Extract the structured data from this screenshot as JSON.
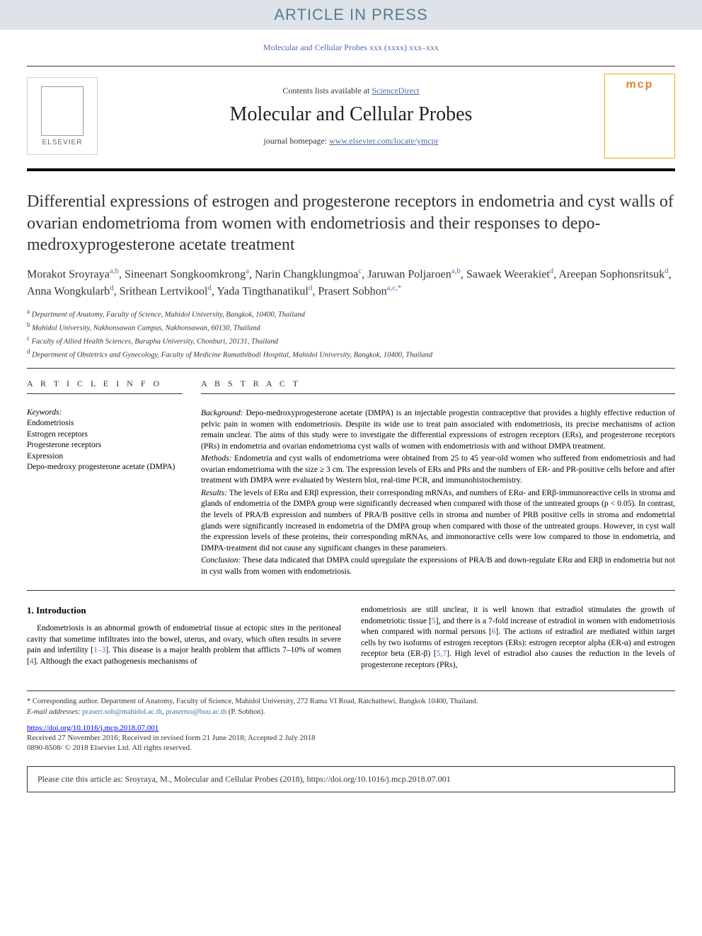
{
  "banner": {
    "label": "ARTICLE IN PRESS",
    "bg_color": "#dde3e8",
    "text_color": "#5a7a8f",
    "fontsize": 22
  },
  "journal_ref": "Molecular and Cellular Probes xxx (xxxx) xxx–xxx",
  "header": {
    "publisher_name": "ELSEVIER",
    "contents_line": "Contents lists available at ",
    "contents_link": "ScienceDirect",
    "journal_name": "Molecular and Cellular Probes",
    "homepage_label": "journal homepage: ",
    "homepage_url": "www.elsevier.com/locate/ymcpr",
    "cover_label": "mcp"
  },
  "article": {
    "title": "Differential expressions of estrogen and progesterone receptors in endometria and cyst walls of ovarian endometrioma from women with endometriosis and their responses to depo-medroxyprogesterone acetate treatment",
    "title_fontsize": 24,
    "title_color": "#333333"
  },
  "authors": [
    {
      "name": "Morakot Sroyraya",
      "aff": "a,b"
    },
    {
      "name": "Sineenart Songkoomkrong",
      "aff": "a"
    },
    {
      "name": "Narin Changklungmoa",
      "aff": "c"
    },
    {
      "name": "Jaruwan Poljaroen",
      "aff": "a,b"
    },
    {
      "name": "Sawaek Weerakiet",
      "aff": "d"
    },
    {
      "name": "Areepan Sophonsritsuk",
      "aff": "d"
    },
    {
      "name": "Anna Wongkularb",
      "aff": "d"
    },
    {
      "name": "Srithean Lertvikool",
      "aff": "d"
    },
    {
      "name": "Yada Tingthanatikul",
      "aff": "d"
    },
    {
      "name": "Prasert Sobhon",
      "aff": "a,c,*"
    }
  ],
  "affiliations": [
    {
      "sup": "a",
      "text": "Department of Anatomy, Faculty of Science, Mahidol University, Bangkok, 10400, Thailand"
    },
    {
      "sup": "b",
      "text": "Mahidol University, Nakhonsawan Campus, Nakhonsawan, 60130, Thailand"
    },
    {
      "sup": "c",
      "text": "Faculty of Allied Health Sciences, Burapha University, Chonburi, 20131, Thailand"
    },
    {
      "sup": "d",
      "text": "Department of Obstetrics and Gynecology, Faculty of Medicine Ramathibodi Hospital, Mahidol University, Bangkok, 10400, Thailand"
    }
  ],
  "article_info": {
    "section_label": "A R T I C L E  I N F O",
    "keywords_label": "Keywords:",
    "keywords": [
      "Endometriosis",
      "Estrogen receptors",
      "Progesterone receptors",
      "Expression",
      "Depo-medroxy progesterone acetate (DMPA)"
    ]
  },
  "abstract": {
    "section_label": "A B S T R A C T",
    "background_label": "Background:",
    "background": "Depo-medroxyprogesterone acetate (DMPA) is an injectable progestin contraceptive that provides a highly effective reduction of pelvic pain in women with endometriosis. Despite its wide use to treat pain associated with endometriosis, its precise mechanisms of action remain unclear. The aims of this study were to investigate the differential expressions of estrogen receptors (ERs), and progesterone receptors (PRs) in endometria and ovarian endometrioma cyst walls of women with endometriosis with and without DMPA treatment.",
    "methods_label": "Methods:",
    "methods": "Endometria and cyst walls of endometrioma were obtained from 25 to 45 year-old women who suffered from endometriosis and had ovarian endometrioma with the size ≥ 3 cm. The expression levels of ERs and PRs and the numbers of ER- and PR-positive cells before and after treatment with DMPA were evaluated by Western blot, real-time PCR, and immunohistochemistry.",
    "results_label": "Results:",
    "results": "The levels of ERα and ERβ expression, their corresponding mRNAs, and numbers of ERα- and ERβ-immunoreactive cells in stroma and glands of endometria of the DMPA group were significantly decreased when compared with those of the untreated groups (p < 0.05). In contrast, the levels of PRA/B expression and numbers of PRA/B positive cells in stroma and number of PRB positive cells in stroma and endometrial glands were significantly increased in endometria of the DMPA group when compared with those of the untreated groups. However, in cyst wall the expression levels of these proteins, their corresponding mRNAs, and immonoractive cells were low compared to those in endometria, and DMPA-treatment did not cause any significant changes in these parameters.",
    "conclusion_label": "Conclusion:",
    "conclusion": "These data indicated that DMPA could upregulate the expressions of PRA/B and down-regulate ERα and ERβ in endometria but not in cyst walls from women with endometriosis."
  },
  "intro": {
    "heading": "1. Introduction",
    "col1": "Endometriosis is an abnormal growth of endometrial tissue at ectopic sites in the peritoneal cavity that sometime infiltrates into the bowel, uterus, and ovary, which often results in severe pain and infertility [1–3]. This disease is a major health problem that afflicts 7–10% of women [4]. Although the exact pathogenesis mechanisms of",
    "col2": "endometriosis are still unclear, it is well known that estradiol stimulates the growth of endometriotic tissue [5], and there is a 7-fold increase of estradiol in women with endometriosis when compared with normal persons [6]. The actions of estradiol are mediated within target cells by two isoforms of estrogen receptors (ERs): estrogen receptor alpha (ER-α) and estrogen receptor beta (ER-β) [5,7]. High level of estradiol also causes the reduction in the levels of progesterone receptors (PRs),",
    "ref_links": [
      "1–3",
      "4",
      "5",
      "6",
      "5,7"
    ]
  },
  "footnotes": {
    "corresponding": "* Corresponding author. Department of Anatomy, Faculty of Science, Mahidol University, 272 Rama VI Road, Ratchathewi, Bangkok 10400, Thailand.",
    "email_label": "E-mail addresses:",
    "emails": [
      "prasert.sob@mahidol.ac.th",
      "prasertso@buu.ac.th"
    ],
    "email_suffix": "(P. Sobhon).",
    "doi": "https://doi.org/10.1016/j.mcp.2018.07.001",
    "received": "Received 27 November 2016; Received in revised form 21 June 2018; Accepted 2 July 2018",
    "copyright": "0890-8508/ © 2018 Elsevier Ltd. All rights reserved."
  },
  "citation_box": "Please cite this article as: Sroyraya, M., Molecular and Cellular Probes (2018), https://doi.org/10.1016/j.mcp.2018.07.001",
  "colors": {
    "link": "#4a6ca8",
    "rule": "#000000",
    "text": "#333333",
    "banner_bg": "#dde3e8",
    "cover_accent": "#e08030"
  }
}
